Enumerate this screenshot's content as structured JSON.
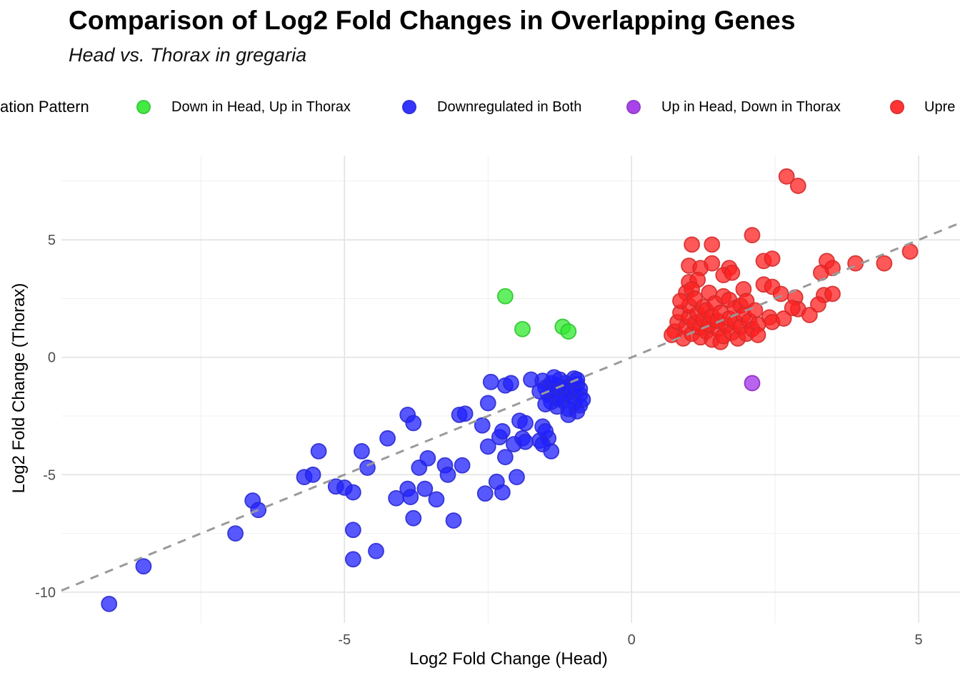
{
  "header": {
    "title": "Comparison of Log2 Fold Changes in Overlapping Genes",
    "subtitle": "Head vs. Thorax in gregaria"
  },
  "legend": {
    "title": "ation Pattern",
    "items": [
      {
        "label": "Down in Head, Up in Thorax",
        "color": "#30e830"
      },
      {
        "label": "Downregulated in Both",
        "color": "#2020ff"
      },
      {
        "label": "Up in Head, Down in Thorax",
        "color": "#a030e8"
      },
      {
        "label": "Upre",
        "color": "#ff2020"
      }
    ]
  },
  "chart_data": {
    "type": "scatter",
    "title": "Comparison of Log2 Fold Changes in Overlapping Genes",
    "subtitle": "Head vs. Thorax in gregaria",
    "xlabel": "Log2 Fold Change (Head)",
    "ylabel": "Log2 Fold Change (Thorax)",
    "xlim": [
      -9.93,
      5.72
    ],
    "ylim": [
      -11.31,
      8.59
    ],
    "x_ticks": [
      -5,
      0,
      5
    ],
    "y_ticks": [
      -10,
      -5,
      0,
      5
    ],
    "x_minor_ticks": [
      -7.5,
      -2.5,
      2.5
    ],
    "y_minor_ticks": [
      -7.5,
      -2.5,
      2.5,
      7.5
    ],
    "grid": true,
    "grid_color": "#e2e2e2",
    "grid_minor_color": "#efefef",
    "tick_label_color": "#4d4d4d",
    "legend_position": "top",
    "identity_line": {
      "y_equals_x": true,
      "style": "dashed",
      "color": "#9a9a9a"
    },
    "marker": {
      "radius": 10.5,
      "fill_opacity": 0.75,
      "stroke_opacity": 0.9,
      "stroke_width": 1.8
    },
    "series": [
      {
        "name": "Down in Head, Up in Thorax",
        "color": "#30e830",
        "stroke": "#2cc42c",
        "points": [
          [
            -2.2,
            2.6
          ],
          [
            -1.9,
            1.2
          ],
          [
            -1.2,
            1.3
          ],
          [
            -1.1,
            1.1
          ]
        ]
      },
      {
        "name": "Downregulated in Both",
        "color": "#2020ff",
        "stroke": "#2a2ad4",
        "points": [
          [
            -9.1,
            -10.5
          ],
          [
            -8.5,
            -8.9
          ],
          [
            -6.9,
            -7.5
          ],
          [
            -6.6,
            -6.1
          ],
          [
            -6.5,
            -6.5
          ],
          [
            -5.7,
            -5.1
          ],
          [
            -5.55,
            -5.0
          ],
          [
            -5.45,
            -4.0
          ],
          [
            -5.15,
            -5.5
          ],
          [
            -5.0,
            -5.55
          ],
          [
            -4.85,
            -5.75
          ],
          [
            -4.85,
            -7.35
          ],
          [
            -4.85,
            -8.6
          ],
          [
            -4.45,
            -8.25
          ],
          [
            -4.7,
            -4.0
          ],
          [
            -4.6,
            -4.7
          ],
          [
            -4.25,
            -3.45
          ],
          [
            -4.1,
            -6.0
          ],
          [
            -3.9,
            -5.6
          ],
          [
            -3.85,
            -5.95
          ],
          [
            -3.8,
            -6.85
          ],
          [
            -3.7,
            -4.7
          ],
          [
            -3.6,
            -5.6
          ],
          [
            -3.55,
            -4.3
          ],
          [
            -3.4,
            -6.05
          ],
          [
            -3.25,
            -4.6
          ],
          [
            -3.2,
            -5.0
          ],
          [
            -3.1,
            -6.95
          ],
          [
            -2.95,
            -4.6
          ],
          [
            -3.9,
            -2.45
          ],
          [
            -3.8,
            -2.8
          ],
          [
            -2.55,
            -5.8
          ],
          [
            -2.35,
            -5.3
          ],
          [
            -2.5,
            -3.8
          ],
          [
            -2.3,
            -3.4
          ],
          [
            -2.2,
            -4.25
          ],
          [
            -2.05,
            -3.7
          ],
          [
            -1.9,
            -3.45
          ],
          [
            -2.0,
            -5.1
          ],
          [
            -2.25,
            -5.75
          ],
          [
            -1.6,
            -3.55
          ],
          [
            -1.45,
            -3.45
          ],
          [
            -1.4,
            -4.0
          ],
          [
            -3.0,
            -2.45
          ],
          [
            -2.9,
            -2.4
          ],
          [
            -2.6,
            -2.9
          ],
          [
            -2.25,
            -3.15
          ],
          [
            -1.95,
            -2.7
          ],
          [
            -1.85,
            -2.8
          ],
          [
            -1.55,
            -2.95
          ],
          [
            -1.5,
            -3.15
          ],
          [
            -1.1,
            -2.45
          ],
          [
            -0.95,
            -2.3
          ],
          [
            -2.45,
            -1.05
          ],
          [
            -2.2,
            -1.2
          ],
          [
            -2.1,
            -1.1
          ],
          [
            -2.5,
            -1.95
          ],
          [
            -1.75,
            -0.95
          ],
          [
            -1.85,
            -3.6
          ],
          [
            -1.55,
            -3.7
          ],
          [
            -1.55,
            -1.0
          ],
          [
            -1.5,
            -1.3
          ],
          [
            -1.45,
            -1.6
          ],
          [
            -1.4,
            -1.1
          ],
          [
            -1.4,
            -1.9
          ],
          [
            -1.35,
            -1.45
          ],
          [
            -1.3,
            -1.2
          ],
          [
            -1.3,
            -1.75
          ],
          [
            -1.3,
            -2.1
          ],
          [
            -1.25,
            -0.95
          ],
          [
            -1.2,
            -1.55
          ],
          [
            -1.2,
            -1.3
          ],
          [
            -1.2,
            -1.85
          ],
          [
            -1.15,
            -1.1
          ],
          [
            -1.1,
            -2.2
          ],
          [
            -1.1,
            -1.5
          ],
          [
            -1.1,
            -1.25
          ],
          [
            -1.05,
            -1.7
          ],
          [
            -1.0,
            -0.9
          ],
          [
            -1.0,
            -1.4
          ],
          [
            -1.0,
            -1.95
          ],
          [
            -0.95,
            -1.15
          ],
          [
            -0.9,
            -1.6
          ],
          [
            -0.9,
            -1.35
          ],
          [
            -0.9,
            -2.05
          ],
          [
            -0.85,
            -1.8
          ],
          [
            -1.6,
            -1.45
          ],
          [
            -1.5,
            -2.0
          ],
          [
            -1.35,
            -0.85
          ],
          [
            -0.95,
            -0.95
          ]
        ]
      },
      {
        "name": "Up in Head, Down in Thorax",
        "color": "#a030e8",
        "stroke": "#8c28c8",
        "points": [
          [
            2.1,
            -1.1
          ]
        ]
      },
      {
        "name": "Upregulated in Both",
        "color": "#ff2020",
        "stroke": "#d42a2a",
        "points": [
          [
            2.7,
            7.7
          ],
          [
            2.9,
            7.3
          ],
          [
            2.1,
            5.2
          ],
          [
            1.05,
            4.8
          ],
          [
            1.4,
            4.8
          ],
          [
            4.85,
            4.5
          ],
          [
            1.0,
            3.9
          ],
          [
            1.2,
            3.8
          ],
          [
            1.4,
            4.0
          ],
          [
            1.7,
            3.8
          ],
          [
            2.3,
            4.1
          ],
          [
            2.45,
            4.2
          ],
          [
            3.4,
            4.1
          ],
          [
            3.5,
            3.8
          ],
          [
            3.9,
            4.0
          ],
          [
            4.4,
            4.0
          ],
          [
            1.0,
            3.2
          ],
          [
            1.15,
            3.3
          ],
          [
            1.6,
            3.5
          ],
          [
            1.75,
            3.6
          ],
          [
            1.95,
            2.9
          ],
          [
            2.3,
            3.1
          ],
          [
            2.45,
            3.0
          ],
          [
            2.6,
            2.7
          ],
          [
            2.85,
            2.55
          ],
          [
            3.3,
            3.6
          ],
          [
            3.35,
            2.65
          ],
          [
            3.5,
            2.7
          ],
          [
            3.25,
            2.25
          ],
          [
            2.9,
            2.05
          ],
          [
            3.1,
            1.8
          ],
          [
            2.4,
            1.7
          ],
          [
            2.45,
            1.5
          ],
          [
            2.65,
            1.65
          ],
          [
            2.8,
            2.1
          ],
          [
            0.75,
            1.1
          ],
          [
            0.8,
            1.5
          ],
          [
            0.85,
            1.9
          ],
          [
            0.9,
            0.8
          ],
          [
            0.95,
            1.3
          ],
          [
            0.95,
            2.75
          ],
          [
            1.0,
            1.7
          ],
          [
            1.0,
            2.2
          ],
          [
            1.05,
            1.0
          ],
          [
            1.05,
            2.9
          ],
          [
            1.1,
            1.45
          ],
          [
            1.1,
            2.5
          ],
          [
            1.15,
            1.85
          ],
          [
            1.2,
            0.85
          ],
          [
            1.2,
            1.25
          ],
          [
            1.25,
            1.6
          ],
          [
            1.25,
            2.15
          ],
          [
            1.3,
            2.0
          ],
          [
            1.3,
            1.1
          ],
          [
            1.35,
            1.4
          ],
          [
            1.35,
            2.75
          ],
          [
            1.4,
            0.75
          ],
          [
            1.4,
            1.75
          ],
          [
            1.45,
            2.3
          ],
          [
            1.5,
            1.2
          ],
          [
            1.5,
            1.55
          ],
          [
            1.55,
            1.9
          ],
          [
            1.55,
            0.65
          ],
          [
            1.6,
            0.9
          ],
          [
            1.6,
            2.6
          ],
          [
            1.65,
            1.35
          ],
          [
            1.7,
            1.65
          ],
          [
            1.7,
            2.45
          ],
          [
            1.75,
            1.05
          ],
          [
            1.8,
            2.1
          ],
          [
            1.8,
            1.5
          ],
          [
            1.85,
            0.8
          ],
          [
            1.9,
            1.3
          ],
          [
            1.9,
            2.2
          ],
          [
            1.95,
            1.8
          ],
          [
            2.0,
            2.4
          ],
          [
            2.0,
            1.0
          ],
          [
            2.05,
            1.55
          ],
          [
            2.1,
            1.2
          ],
          [
            2.15,
            2.0
          ],
          [
            2.2,
            1.4
          ],
          [
            2.2,
            0.95
          ],
          [
            0.7,
            0.95
          ],
          [
            0.85,
            2.4
          ]
        ]
      }
    ]
  }
}
